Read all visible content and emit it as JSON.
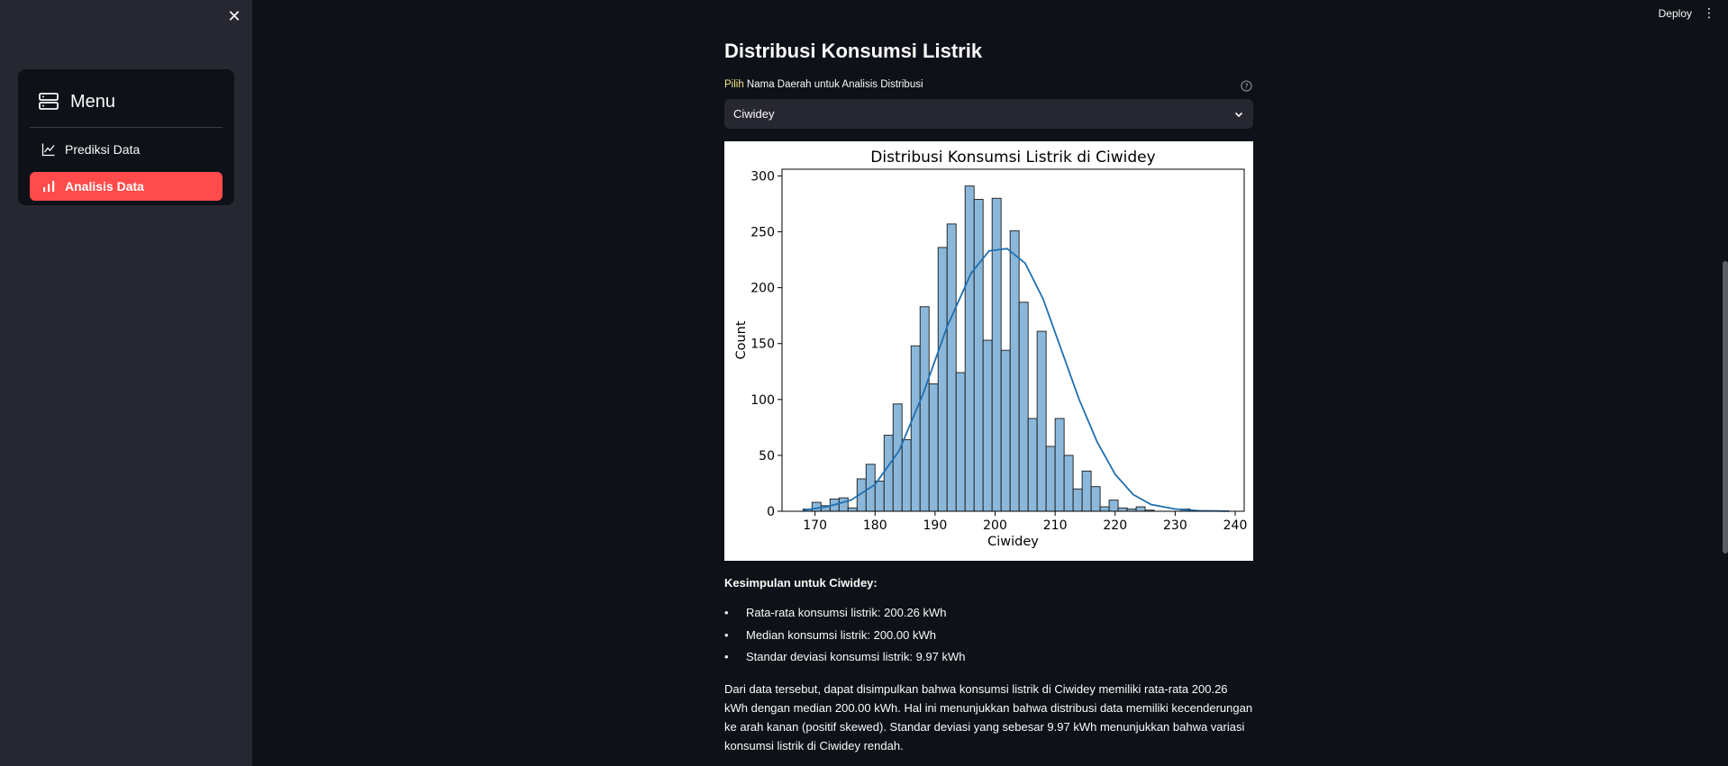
{
  "sidebar": {
    "menu_title": "Menu",
    "items": [
      {
        "label": "Prediksi Data",
        "icon": "line-chart-icon",
        "active": false
      },
      {
        "label": "Analisis Data",
        "icon": "bar-chart-icon",
        "active": true
      }
    ]
  },
  "header": {
    "deploy_label": "Deploy"
  },
  "main": {
    "title": "Distribusi Konsumsi Listrik",
    "select_label_prefix": "Pilih",
    "select_label_rest": " Nama Daerah untuk Analisis Distribusi",
    "select_value": "Ciwidey"
  },
  "chart_data": {
    "type": "bar",
    "title": "Distribusi Konsumsi Listrik di Ciwidey",
    "xlabel": "Ciwidey",
    "ylabel": "Count",
    "xlim": [
      164.5,
      241.5
    ],
    "ylim": [
      0,
      306
    ],
    "xticks": [
      170,
      180,
      190,
      200,
      210,
      220,
      230,
      240
    ],
    "yticks": [
      0,
      50,
      100,
      150,
      200,
      250,
      300
    ],
    "bin_start": 168,
    "bin_width": 1.5,
    "values": [
      2,
      8,
      5,
      11,
      12,
      3,
      29,
      42,
      27,
      68,
      96,
      64,
      148,
      183,
      114,
      236,
      257,
      124,
      291,
      279,
      153,
      280,
      144,
      251,
      187,
      83,
      161,
      58,
      83,
      50,
      20,
      36,
      22,
      4,
      10,
      3,
      2,
      4,
      1,
      0,
      0,
      0,
      2,
      0
    ],
    "kde": [
      [
        168,
        1
      ],
      [
        172,
        4
      ],
      [
        176,
        10
      ],
      [
        180,
        24
      ],
      [
        184,
        54
      ],
      [
        188,
        105
      ],
      [
        192,
        165
      ],
      [
        196,
        213
      ],
      [
        199,
        233
      ],
      [
        202,
        235
      ],
      [
        205,
        222
      ],
      [
        208,
        190
      ],
      [
        211,
        145
      ],
      [
        214,
        100
      ],
      [
        217,
        62
      ],
      [
        220,
        33
      ],
      [
        223,
        15
      ],
      [
        226,
        6
      ],
      [
        230,
        2
      ],
      [
        234,
        0.5
      ],
      [
        239,
        0.1
      ]
    ],
    "fill_color": "#8bb8da",
    "line_color": "#1f6fb2"
  },
  "summary": {
    "heading": "Kesimpulan untuk Ciwidey:",
    "bullets": [
      "Rata-rata konsumsi listrik: 200.26 kWh",
      "Median konsumsi listrik: 200.00 kWh",
      "Standar deviasi konsumsi listrik: 9.97 kWh"
    ],
    "paragraph": "Dari data tersebut, dapat disimpulkan bahwa konsumsi listrik di Ciwidey memiliki rata-rata 200.26 kWh dengan median 200.00 kWh. Hal ini menunjukkan bahwa distribusi data memiliki kecenderungan ke arah kanan (positif skewed). Standar deviasi yang sebesar 9.97 kWh menunjukkan bahwa variasi konsumsi listrik di Ciwidey rendah."
  }
}
